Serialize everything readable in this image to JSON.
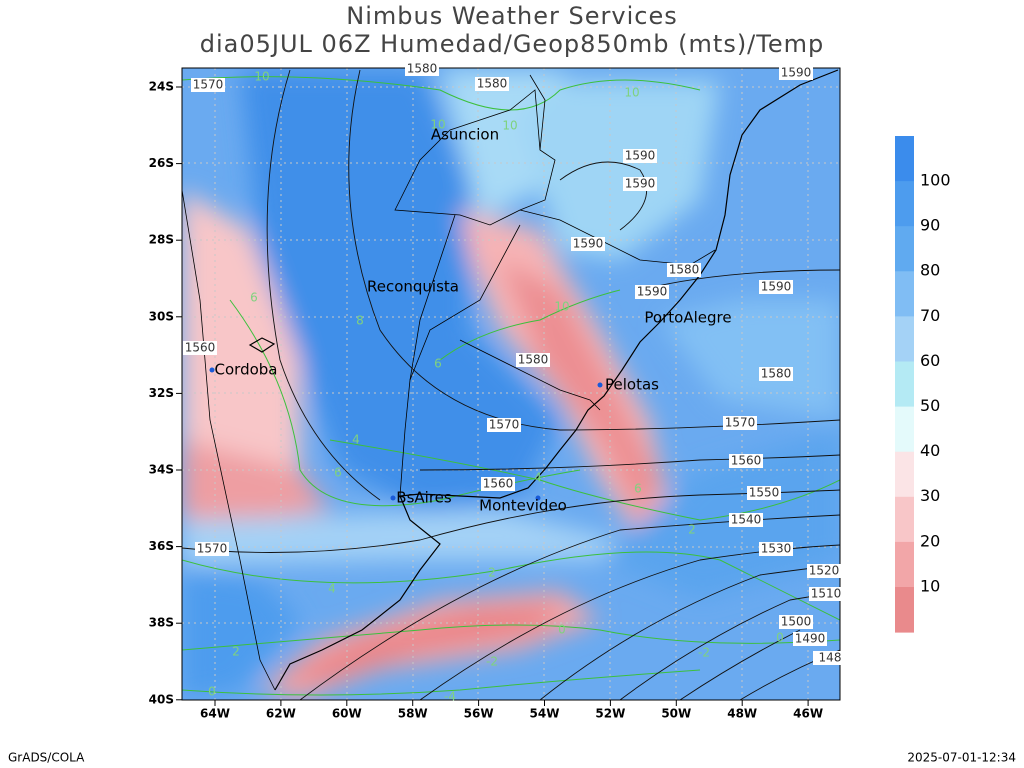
{
  "header": {
    "title": [
      "Nimbus Weather Services",
      "dia05JUL 06Z Humedad/Geop850mb (mts)/Temp"
    ]
  },
  "map": {
    "lat_labels": [
      "24S",
      "26S",
      "28S",
      "30S",
      "32S",
      "34S",
      "36S",
      "38S",
      "40S"
    ],
    "lon_labels": [
      "64W",
      "62W",
      "60W",
      "58W",
      "56W",
      "54W",
      "52W",
      "50W",
      "48W",
      "46W"
    ],
    "cities": [
      "Asuncion",
      "Reconquista",
      "PortoAlegre",
      "Cordoba",
      "Pelotas",
      "BsAires",
      "Montevideo"
    ],
    "height_labels": [
      "1580",
      "1580",
      "1590",
      "1590",
      "1590",
      "1590",
      "1580",
      "1590",
      "1590",
      "1580",
      "1580",
      "1570",
      "1570",
      "1560",
      "1560",
      "1550",
      "1540",
      "1530",
      "1520",
      "1510",
      "1500",
      "1490",
      "1570",
      "1570",
      "1560",
      "148"
    ],
    "temp_labels": [
      "10",
      "10",
      "10",
      "10",
      "10",
      "8",
      "6",
      "6",
      "4",
      "4",
      "6",
      "6",
      "2",
      "2",
      "4",
      "0",
      "-2",
      "-2",
      "0",
      "2",
      "0",
      "-4"
    ]
  },
  "colorbar": {
    "labels": [
      100,
      90,
      80,
      70,
      60,
      50,
      40,
      30,
      20,
      10
    ],
    "colors": [
      "#3b8cec",
      "#4d9cee",
      "#60aaf0",
      "#80bdf4",
      "#a4d2f6",
      "#b4eaf4",
      "#e4fafb",
      "#fbe4e6",
      "#f8c6c8",
      "#f2a6a8",
      "#e98a8c"
    ]
  },
  "footer": {
    "left": "GrADS/COLA",
    "right": "2025-07-01-12:34"
  }
}
